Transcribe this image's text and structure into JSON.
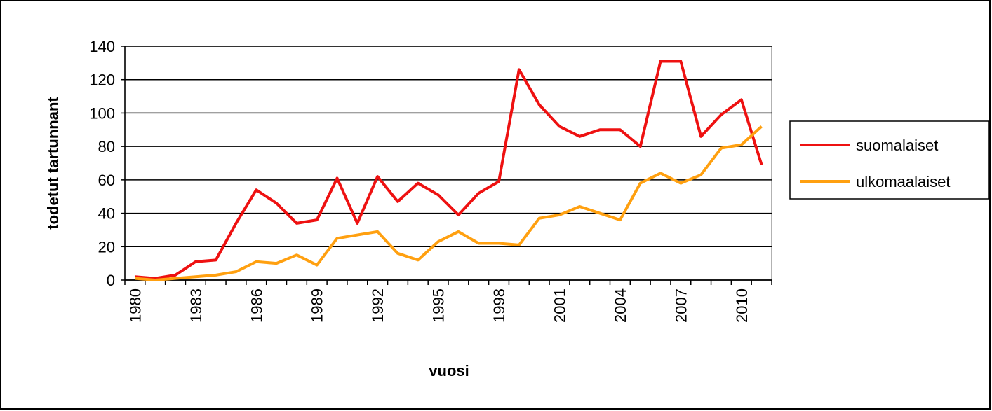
{
  "chart_data": {
    "type": "line",
    "x_label": "vuosi",
    "y_label": "todetut tartunnant",
    "categories": [
      "1980",
      null,
      null,
      "1983",
      null,
      null,
      "1986",
      null,
      null,
      "1989",
      null,
      null,
      "1992",
      null,
      null,
      "1995",
      null,
      null,
      "1998",
      null,
      null,
      "2001",
      null,
      null,
      "2004",
      null,
      null,
      "2007",
      null,
      null,
      "2010",
      null
    ],
    "series": [
      {
        "name": "suomalaiset",
        "color": "#ee1111",
        "values": [
          2,
          1,
          3,
          11,
          12,
          34,
          54,
          46,
          34,
          36,
          61,
          34,
          62,
          47,
          58,
          51,
          39,
          52,
          59,
          126,
          105,
          92,
          86,
          90,
          90,
          80,
          131,
          131,
          86,
          99,
          108,
          69
        ]
      },
      {
        "name": "ulkomaalaiset",
        "color": "#ffa010",
        "values": [
          1,
          0,
          1,
          2,
          3,
          5,
          11,
          10,
          15,
          9,
          25,
          27,
          29,
          16,
          12,
          23,
          29,
          22,
          22,
          21,
          37,
          39,
          44,
          40,
          36,
          58,
          64,
          58,
          63,
          79,
          81,
          92
        ]
      }
    ],
    "ylim": [
      0,
      140
    ],
    "yticks": [
      0,
      20,
      40,
      60,
      80,
      100,
      120,
      140
    ],
    "grid": true,
    "legend": "right"
  }
}
